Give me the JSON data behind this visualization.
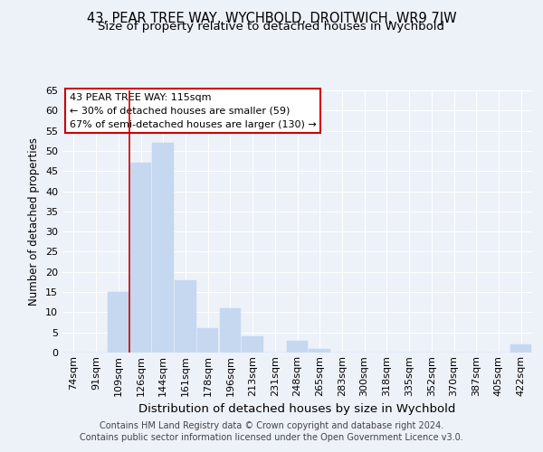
{
  "title": "43, PEAR TREE WAY, WYCHBOLD, DROITWICH, WR9 7JW",
  "subtitle": "Size of property relative to detached houses in Wychbold",
  "xlabel": "Distribution of detached houses by size in Wychbold",
  "ylabel": "Number of detached properties",
  "categories": [
    "74sqm",
    "91sqm",
    "109sqm",
    "126sqm",
    "144sqm",
    "161sqm",
    "178sqm",
    "196sqm",
    "213sqm",
    "231sqm",
    "248sqm",
    "265sqm",
    "283sqm",
    "300sqm",
    "318sqm",
    "335sqm",
    "352sqm",
    "370sqm",
    "387sqm",
    "405sqm",
    "422sqm"
  ],
  "values": [
    0,
    0,
    15,
    47,
    52,
    18,
    6,
    11,
    4,
    0,
    3,
    1,
    0,
    0,
    0,
    0,
    0,
    0,
    0,
    0,
    2
  ],
  "bar_color": "#c5d8f0",
  "bar_edge_color": "#c5d8f0",
  "vline_color": "#cc0000",
  "annotation_text": "43 PEAR TREE WAY: 115sqm\n← 30% of detached houses are smaller (59)\n67% of semi-detached houses are larger (130) →",
  "annotation_box_color": "white",
  "annotation_box_edge_color": "#cc0000",
  "ylim": [
    0,
    65
  ],
  "yticks": [
    0,
    5,
    10,
    15,
    20,
    25,
    30,
    35,
    40,
    45,
    50,
    55,
    60,
    65
  ],
  "bg_color": "#edf1f8",
  "plot_bg_color": "#edf1f8",
  "footer_line1": "Contains HM Land Registry data © Crown copyright and database right 2024.",
  "footer_line2": "Contains public sector information licensed under the Open Government Licence v3.0.",
  "title_fontsize": 10.5,
  "subtitle_fontsize": 9.5,
  "xlabel_fontsize": 9.5,
  "ylabel_fontsize": 8.5,
  "tick_fontsize": 8,
  "footer_fontsize": 7,
  "annotation_fontsize": 8,
  "vline_index": 2.5
}
